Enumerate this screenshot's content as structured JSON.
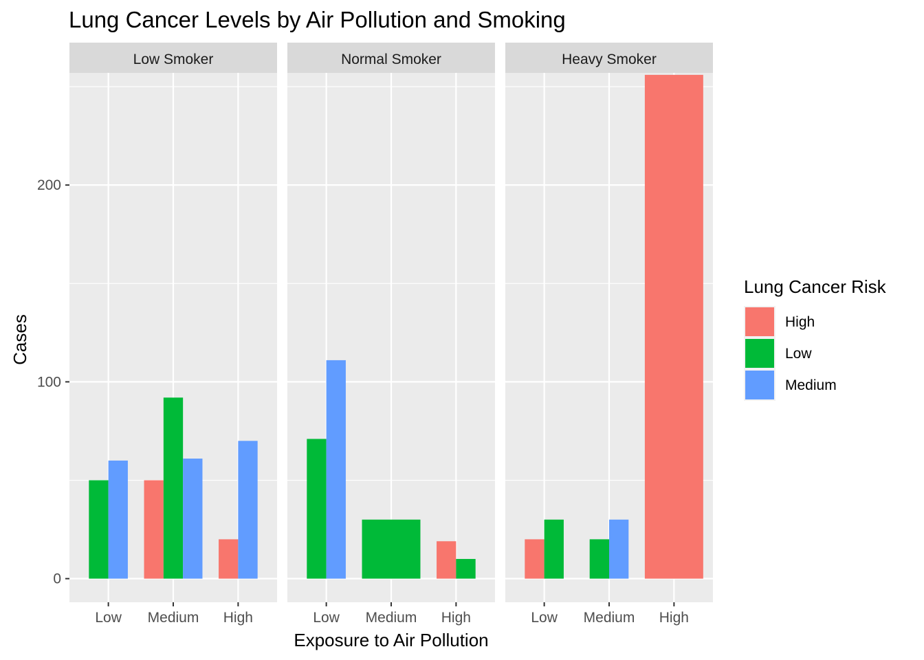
{
  "chart_data": {
    "type": "bar",
    "title": "Lung Cancer Levels by Air Pollution and Smoking",
    "xlabel": "Exposure to Air Pollution",
    "ylabel": "Cases",
    "ylim": [
      -12,
      257
    ],
    "yticks": [
      0,
      100,
      200
    ],
    "grid": true,
    "categories": [
      "Low",
      "Medium",
      "High"
    ],
    "legend": {
      "title": "Lung Cancer Risk",
      "placement": "right",
      "entries": [
        {
          "name": "High",
          "color": "#F8766D"
        },
        {
          "name": "Low",
          "color": "#00BA38"
        },
        {
          "name": "Medium",
          "color": "#619CFF"
        }
      ]
    },
    "facets": [
      {
        "label": "Low Smoker",
        "groups": [
          {
            "category": "Low",
            "bars": [
              {
                "risk": "Low",
                "value": 50
              },
              {
                "risk": "Medium",
                "value": 60
              }
            ]
          },
          {
            "category": "Medium",
            "bars": [
              {
                "risk": "High",
                "value": 50
              },
              {
                "risk": "Low",
                "value": 92
              },
              {
                "risk": "Medium",
                "value": 61
              }
            ]
          },
          {
            "category": "High",
            "bars": [
              {
                "risk": "High",
                "value": 20
              },
              {
                "risk": "Medium",
                "value": 70
              }
            ]
          }
        ]
      },
      {
        "label": "Normal Smoker",
        "groups": [
          {
            "category": "Low",
            "bars": [
              {
                "risk": "Low",
                "value": 71
              },
              {
                "risk": "Medium",
                "value": 111
              }
            ]
          },
          {
            "category": "Medium",
            "bars": [
              {
                "risk": "Low",
                "value": 30
              }
            ]
          },
          {
            "category": "High",
            "bars": [
              {
                "risk": "High",
                "value": 19
              },
              {
                "risk": "Low",
                "value": 10
              }
            ]
          }
        ]
      },
      {
        "label": "Heavy Smoker",
        "groups": [
          {
            "category": "Low",
            "bars": [
              {
                "risk": "High",
                "value": 20
              },
              {
                "risk": "Low",
                "value": 30
              }
            ]
          },
          {
            "category": "Medium",
            "bars": [
              {
                "risk": "Low",
                "value": 20
              },
              {
                "risk": "Medium",
                "value": 30
              }
            ]
          },
          {
            "category": "High",
            "bars": [
              {
                "risk": "High",
                "value": 256
              }
            ]
          }
        ]
      }
    ]
  }
}
